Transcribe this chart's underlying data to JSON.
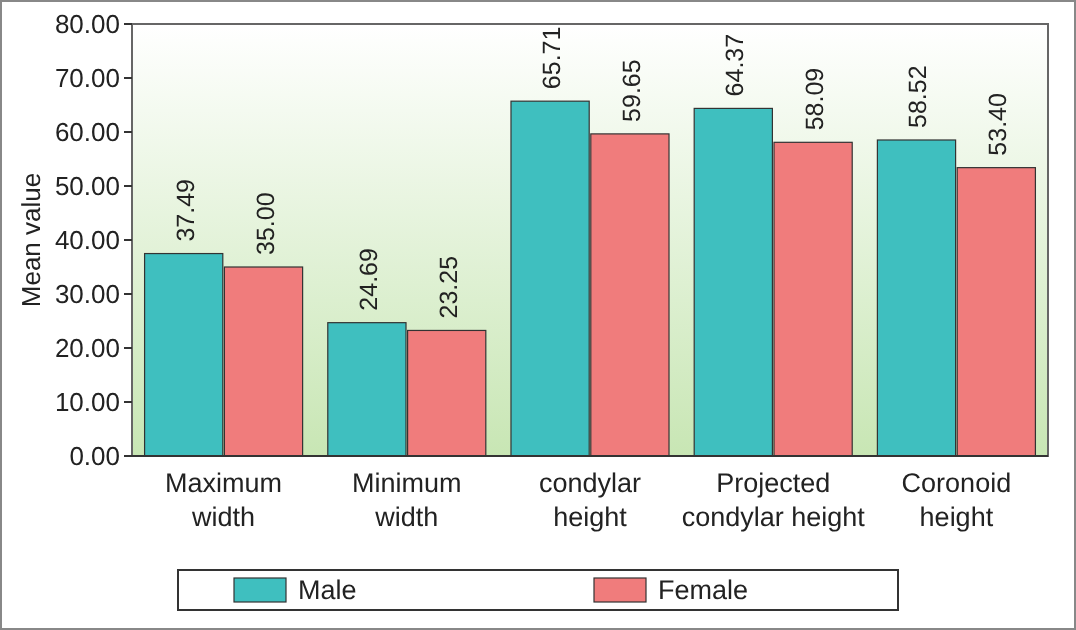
{
  "chart_data": {
    "type": "bar",
    "ylabel": "Mean value",
    "categories": [
      "Maximum\nwidth",
      "Minimum\nwidth",
      "condylar\nheight",
      "Projected\ncondylar height",
      "Coronoid\nheight"
    ],
    "series": [
      {
        "name": "Male",
        "color": "#3fbfbf",
        "values": [
          37.49,
          24.69,
          65.71,
          64.37,
          58.52
        ]
      },
      {
        "name": "Female",
        "color": "#f07c7c",
        "values": [
          35.0,
          23.25,
          59.65,
          58.09,
          53.4
        ]
      }
    ],
    "value_labels": [
      [
        "37.49",
        "24.69",
        "65.71",
        "64.37",
        "58.52"
      ],
      [
        "35.00",
        "23.25",
        "59.65",
        "58.09",
        "53.40"
      ]
    ],
    "ylim": [
      0,
      80
    ],
    "yticks": [
      {
        "value": 0,
        "label": "0.00"
      },
      {
        "value": 10,
        "label": "10.00"
      },
      {
        "value": 20,
        "label": "20.00"
      },
      {
        "value": 30,
        "label": "30.00"
      },
      {
        "value": 40,
        "label": "40.00"
      },
      {
        "value": 50,
        "label": "50.00"
      },
      {
        "value": 60,
        "label": "60.00"
      },
      {
        "value": 70,
        "label": "70.00"
      },
      {
        "value": 80,
        "label": "80.00"
      }
    ],
    "grid": false,
    "legend": "bottom"
  }
}
